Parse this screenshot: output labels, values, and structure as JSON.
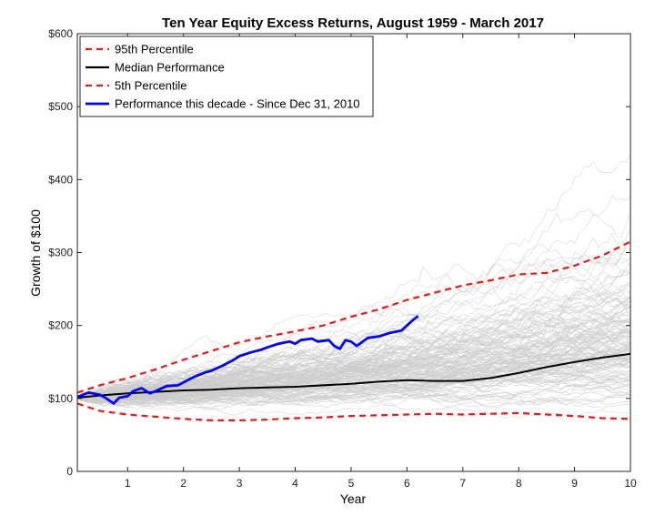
{
  "chart_data": {
    "type": "line",
    "title": "Ten Year Equity Excess Returns, August 1959 - March 2017",
    "xlabel": "Year",
    "ylabel": "Growth of $100",
    "xlim": [
      0.1,
      10
    ],
    "ylim": [
      0,
      600
    ],
    "x_ticks": [
      "1",
      "2",
      "3",
      "4",
      "5",
      "6",
      "7",
      "8",
      "9",
      "10"
    ],
    "y_ticks": [
      "0",
      "$100",
      "$200",
      "$300",
      "$400",
      "$500",
      "$600"
    ],
    "legend_position": "top-left",
    "background_paths": {
      "color": "#cccccc",
      "description_count": 150
    },
    "series": [
      {
        "name": "95th Percentile",
        "color": "#e41a1c",
        "style": "dashed",
        "x": [
          0.1,
          0.5,
          1,
          1.5,
          2,
          2.5,
          3,
          3.5,
          4,
          4.5,
          5,
          5.5,
          6,
          6.5,
          7,
          7.5,
          8,
          8.5,
          9,
          9.5,
          10
        ],
        "y": [
          108,
          118,
          128,
          140,
          153,
          165,
          177,
          185,
          192,
          200,
          212,
          222,
          235,
          245,
          255,
          262,
          270,
          272,
          282,
          296,
          315
        ]
      },
      {
        "name": "Median Performance",
        "color": "#000000",
        "style": "solid",
        "x": [
          0.1,
          0.5,
          1,
          1.5,
          2,
          2.5,
          3,
          3.5,
          4,
          4.5,
          5,
          5.5,
          6,
          6.5,
          7,
          7.5,
          8,
          8.5,
          9,
          9.5,
          10
        ],
        "y": [
          101,
          104,
          107,
          109,
          111,
          112,
          114,
          115,
          116,
          118,
          120,
          123,
          125,
          124,
          124,
          128,
          135,
          143,
          150,
          156,
          161
        ]
      },
      {
        "name": "5th Percentile",
        "color": "#e41a1c",
        "style": "dashed",
        "x": [
          0.1,
          0.5,
          1,
          1.5,
          2,
          2.5,
          3,
          3.5,
          4,
          4.5,
          5,
          5.5,
          6,
          6.5,
          7,
          7.5,
          8,
          8.5,
          9,
          9.5,
          10
        ],
        "y": [
          93,
          83,
          78,
          75,
          72,
          70,
          70,
          71,
          73,
          74,
          76,
          77,
          78,
          79,
          78,
          79,
          80,
          78,
          76,
          73,
          72
        ]
      },
      {
        "name": "Performance this decade -  Since Dec 31, 2010",
        "color": "#0000ff",
        "style": "solid",
        "x": [
          0.1,
          0.3,
          0.5,
          0.6,
          0.75,
          0.85,
          1,
          1.1,
          1.25,
          1.4,
          1.5,
          1.7,
          1.9,
          2.0,
          2.2,
          2.4,
          2.5,
          2.7,
          2.9,
          3.0,
          3.2,
          3.4,
          3.5,
          3.7,
          3.9,
          4.0,
          4.1,
          4.3,
          4.4,
          4.6,
          4.7,
          4.8,
          4.9,
          5.0,
          5.1,
          5.3,
          5.5,
          5.7,
          5.9,
          6.0,
          6.1,
          6.2
        ],
        "y": [
          102,
          108,
          105,
          101,
          93,
          101,
          103,
          110,
          114,
          107,
          110,
          117,
          118,
          122,
          130,
          136,
          138,
          145,
          153,
          158,
          163,
          167,
          170,
          175,
          178,
          175,
          180,
          182,
          178,
          180,
          172,
          168,
          180,
          178,
          172,
          183,
          185,
          190,
          193,
          200,
          207,
          213
        ]
      }
    ]
  }
}
